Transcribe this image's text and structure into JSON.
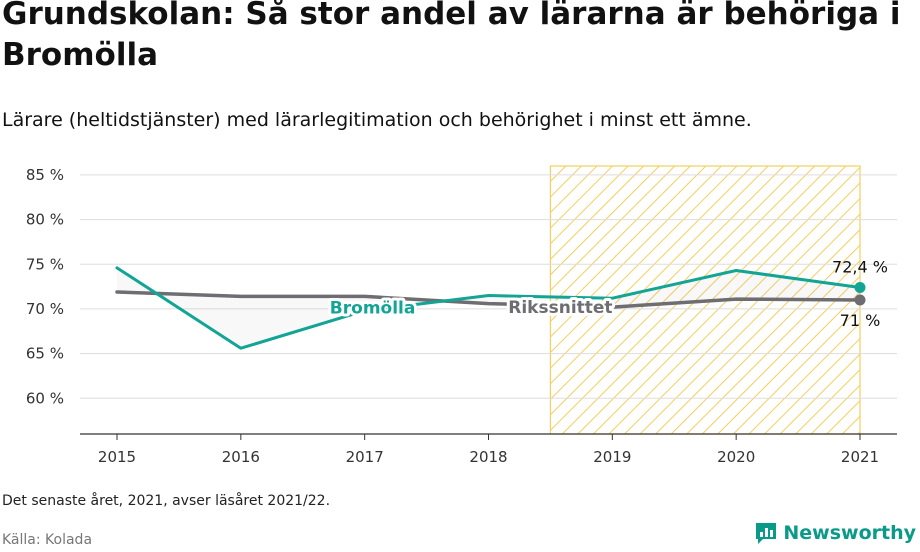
{
  "header": {
    "title": "Grundskolan: Så stor andel av lärarna är behöriga i Bromölla",
    "subtitle": "Lärare (heltidstjänster) med lärarlegitimation och behörighet i minst ett ämne."
  },
  "footer": {
    "note": "Det senaste året, 2021, avser läsåret 2021/22.",
    "source": "Källa: Kolada",
    "brand": "Newsworthy"
  },
  "colors": {
    "bromolla": "#12a495",
    "riket": "#6e6e72",
    "highlight": "#f4cf5f",
    "grid": "#dddddd"
  },
  "chart_data": {
    "type": "line",
    "x": [
      2015,
      2016,
      2017,
      2018,
      2019,
      2020,
      2021
    ],
    "x_tick_labels": [
      "2015",
      "2016",
      "2017",
      "2018",
      "2019",
      "2020",
      "2021"
    ],
    "y_ticks": [
      60,
      65,
      70,
      75,
      80,
      85
    ],
    "y_tick_labels": [
      "60 %",
      "65 %",
      "70 %",
      "75 %",
      "80 %",
      "85 %"
    ],
    "ylim": [
      56,
      86
    ],
    "grid": true,
    "highlight_range": [
      2018.5,
      2021
    ],
    "series": [
      {
        "name": "Bromölla",
        "values": [
          74.6,
          65.6,
          69.8,
          71.5,
          71.2,
          74.3,
          72.4
        ],
        "end_label": "72,4 %"
      },
      {
        "name": "Rikssnittet",
        "values": [
          71.9,
          71.4,
          71.4,
          70.6,
          70.2,
          71.1,
          71.0
        ],
        "end_label": "71 %"
      }
    ]
  }
}
